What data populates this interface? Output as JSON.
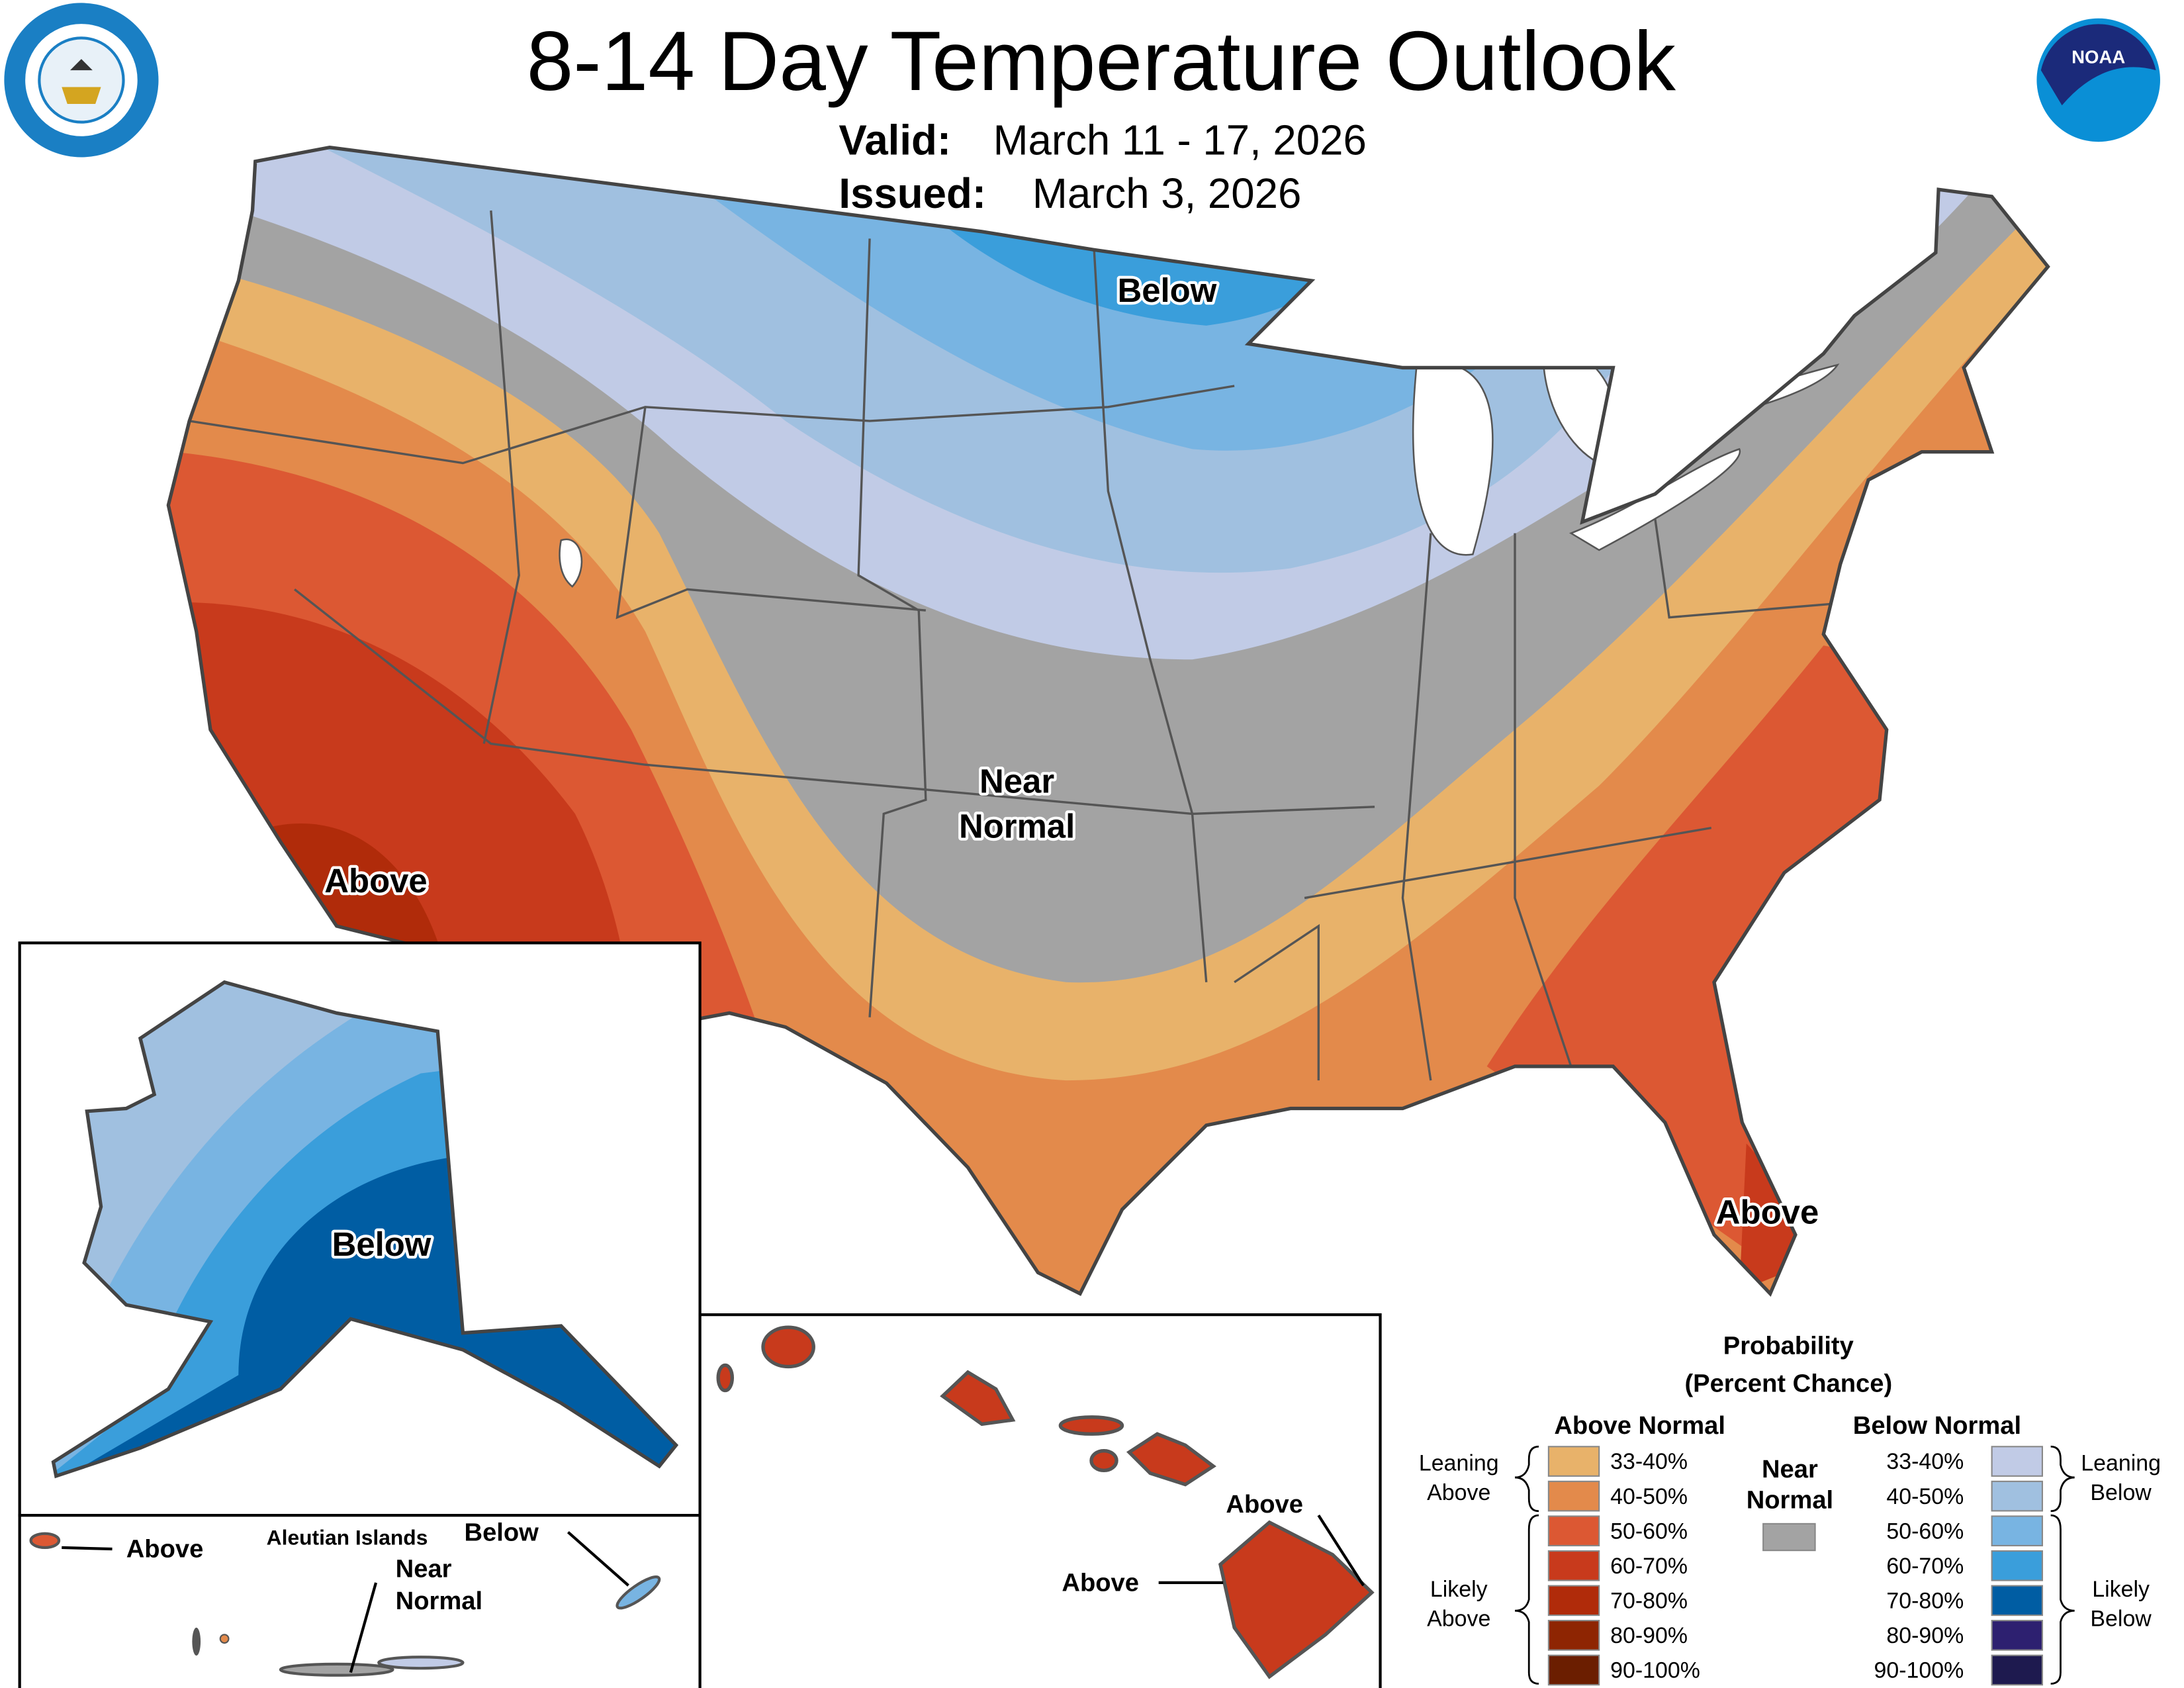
{
  "header": {
    "title": "8-14 Day Temperature Outlook",
    "valid_label": "Valid:",
    "valid_date": "March 11 - 17, 2026",
    "issued_label": "Issued:",
    "issued_date": "March 3, 2026",
    "left_logo": "Department of Commerce seal - United States of America",
    "right_logo": "NOAA"
  },
  "map_labels": {
    "conus_below": "Below",
    "conus_near_1": "Near",
    "conus_near_2": "Normal",
    "conus_above_west": "Above",
    "conus_above_florida": "Above",
    "alaska_below": "Below",
    "aleutian_title": "Aleutian Islands",
    "aleutian_above": "Above",
    "aleutian_below": "Below",
    "aleutian_near_1": "Near",
    "aleutian_near_2": "Normal",
    "hawaii_above_1": "Above",
    "hawaii_above_2": "Above"
  },
  "colors": {
    "near_normal": "#A3A3A3",
    "above": [
      "#E8B26A",
      "#E38A4B",
      "#DC5833",
      "#C83A1C",
      "#B02B0A",
      "#8E2502",
      "#6B1E00"
    ],
    "below": [
      "#C1CBE6",
      "#A0C0E0",
      "#78B4E2",
      "#3A9EDB",
      "#005DA3",
      "#2D2070",
      "#1E1A4F"
    ]
  },
  "legend": {
    "title_1": "Probability",
    "title_2": "(Percent Chance)",
    "above_header": "Above Normal",
    "below_header": "Below Normal",
    "near_1": "Near",
    "near_2": "Normal",
    "leaning_above_1": "Leaning",
    "leaning_above_2": "Above",
    "likely_above_1": "Likely",
    "likely_above_2": "Above",
    "leaning_below_1": "Leaning",
    "leaning_below_2": "Below",
    "likely_below_1": "Likely",
    "likely_below_2": "Below",
    "ranges": [
      "33-40%",
      "40-50%",
      "50-60%",
      "60-70%",
      "70-80%",
      "80-90%",
      "90-100%"
    ]
  }
}
